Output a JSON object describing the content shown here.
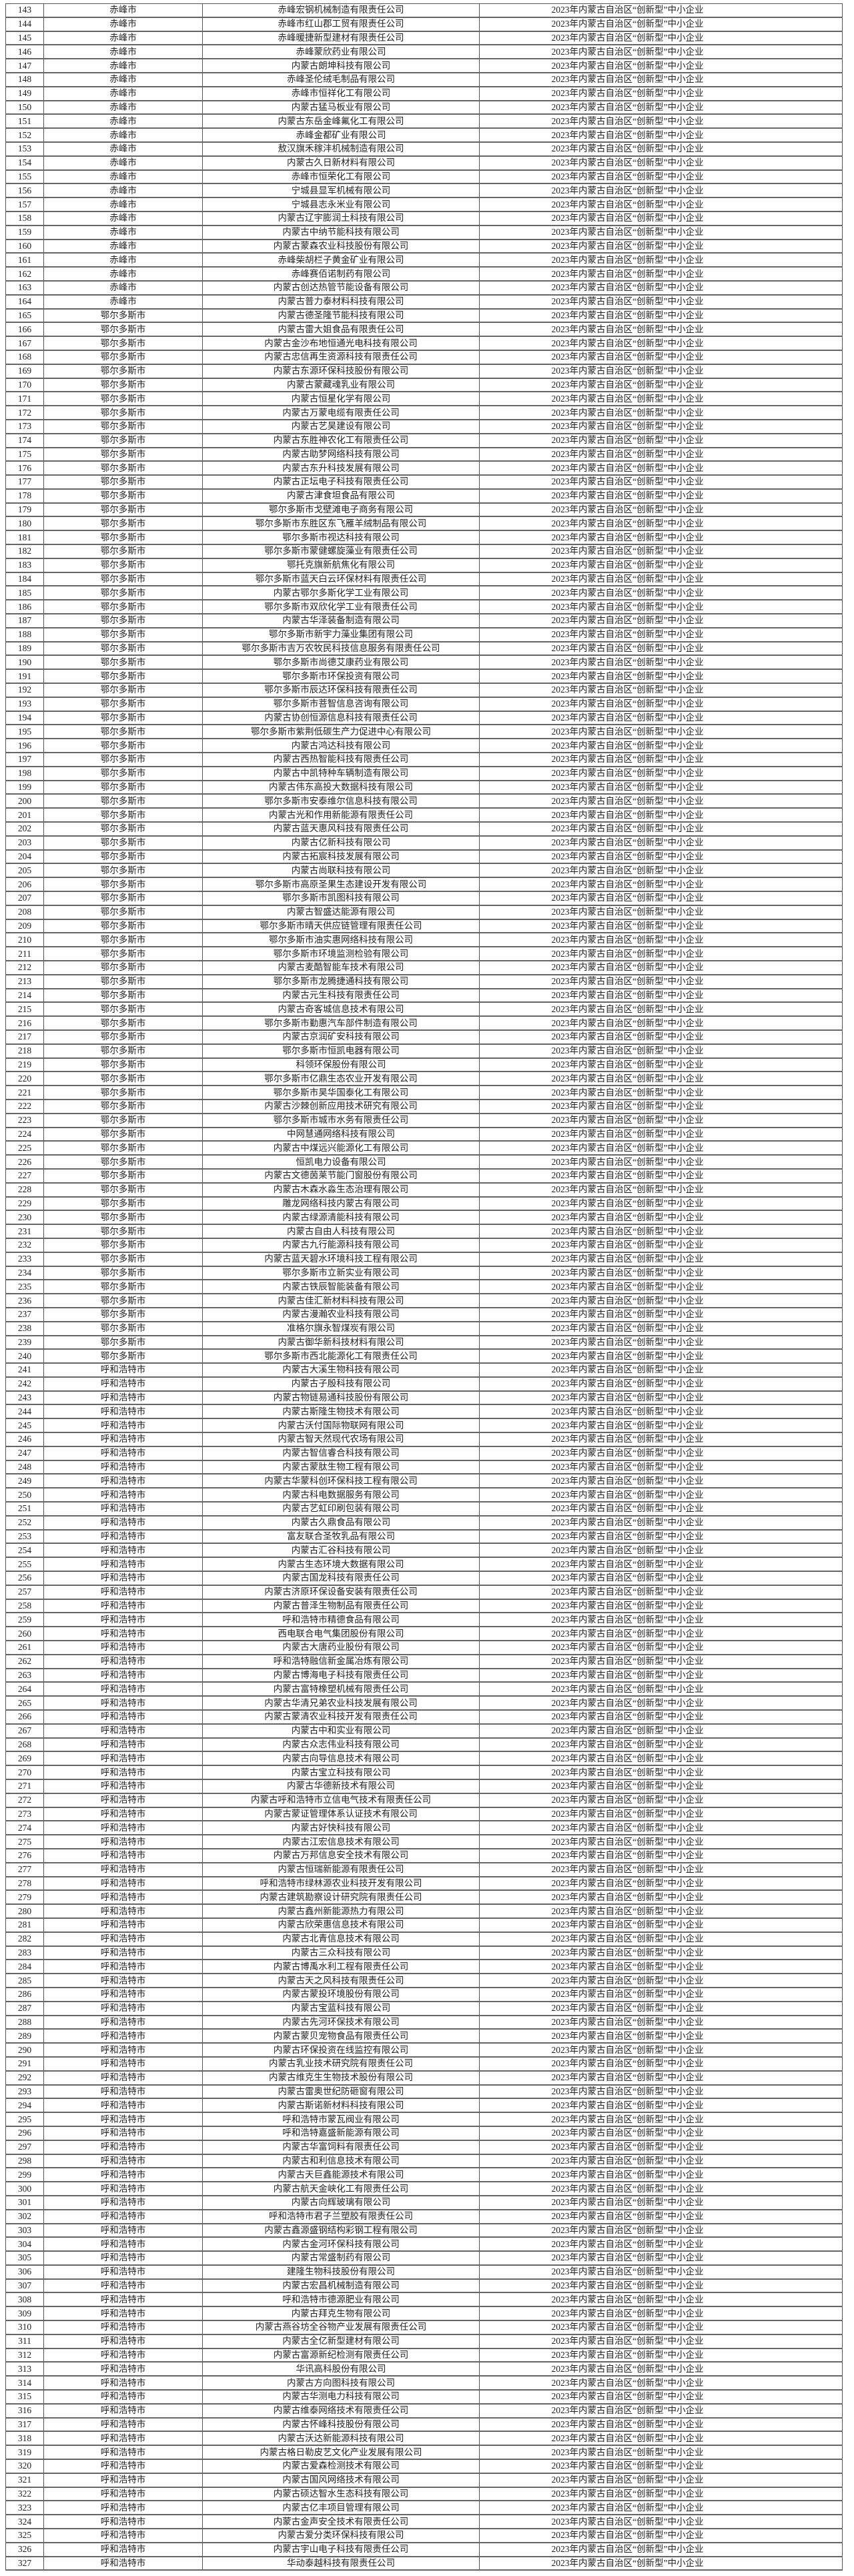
{
  "category": "2023年内蒙古自治区“创新型”中小企业",
  "rows": [
    [
      "143",
      "赤峰市",
      "赤峰宏钢机械制造有限责任公司"
    ],
    [
      "144",
      "赤峰市",
      "赤峰市红山郡工贸有限责任公司"
    ],
    [
      "145",
      "赤峰市",
      "赤峰暖捷新型建材有限责任公司"
    ],
    [
      "146",
      "赤峰市",
      "赤峰蒙欣药业有限公司"
    ],
    [
      "147",
      "赤峰市",
      "内蒙古朗坤科技有限公司"
    ],
    [
      "148",
      "赤峰市",
      "赤峰圣伦绒毛制品有限公司"
    ],
    [
      "149",
      "赤峰市",
      "赤峰市恒祥化工有限公司"
    ],
    [
      "150",
      "赤峰市",
      "内蒙古猛马板业有限公司"
    ],
    [
      "151",
      "赤峰市",
      "内蒙古东岳金峰氟化工有限公司"
    ],
    [
      "152",
      "赤峰市",
      "赤峰金都矿业有限公司"
    ],
    [
      "153",
      "赤峰市",
      "敖汉旗禾稼沣机械制造有限公司"
    ],
    [
      "154",
      "赤峰市",
      "内蒙古久日新材料有限公司"
    ],
    [
      "155",
      "赤峰市",
      "赤峰市恒荣化工有限公司"
    ],
    [
      "156",
      "赤峰市",
      "宁城县显军机械有限公司"
    ],
    [
      "157",
      "赤峰市",
      "宁城县志永米业有限公司"
    ],
    [
      "158",
      "赤峰市",
      "内蒙古辽宇膨润土科技有限公司"
    ],
    [
      "159",
      "赤峰市",
      "内蒙古中纳节能科技有限公司"
    ],
    [
      "160",
      "赤峰市",
      "内蒙古蒙森农业科技股份有限公司"
    ],
    [
      "161",
      "赤峰市",
      "赤峰柴胡栏子黄金矿业有限公司"
    ],
    [
      "162",
      "赤峰市",
      "赤峰赛佰诺制药有限公司"
    ],
    [
      "163",
      "赤峰市",
      "内蒙古创达热管节能设备有限公司"
    ],
    [
      "164",
      "赤峰市",
      "内蒙古普力泰材料科技有限公司"
    ],
    [
      "165",
      "鄂尔多斯市",
      "内蒙古德圣隆节能科技有限公司"
    ],
    [
      "166",
      "鄂尔多斯市",
      "内蒙古雷大姐食品有限责任公司"
    ],
    [
      "167",
      "鄂尔多斯市",
      "内蒙古金沙布地恒通光电科技有限公司"
    ],
    [
      "168",
      "鄂尔多斯市",
      "内蒙古忠信再生资源科技有限责任公司"
    ],
    [
      "169",
      "鄂尔多斯市",
      "内蒙古东源环保科技股份有限公司"
    ],
    [
      "170",
      "鄂尔多斯市",
      "内蒙古蒙藏魂乳业有限公司"
    ],
    [
      "171",
      "鄂尔多斯市",
      "内蒙古恒星化学有限公司"
    ],
    [
      "172",
      "鄂尔多斯市",
      "内蒙古万蒙电缆有限责任公司"
    ],
    [
      "173",
      "鄂尔多斯市",
      "内蒙古艺昊建设有限公司"
    ],
    [
      "174",
      "鄂尔多斯市",
      "内蒙古东胜神农化工有限责任公司"
    ],
    [
      "175",
      "鄂尔多斯市",
      "内蒙古助梦网络科技有限公司"
    ],
    [
      "176",
      "鄂尔多斯市",
      "内蒙古东升科技发展有限公司"
    ],
    [
      "177",
      "鄂尔多斯市",
      "内蒙古正坛电子科技有限责任公司"
    ],
    [
      "178",
      "鄂尔多斯市",
      "内蒙古津食坦食品有限公司"
    ],
    [
      "179",
      "鄂尔多斯市",
      "鄂尔多斯市戈壁滩电子商务有限公司"
    ],
    [
      "180",
      "鄂尔多斯市",
      "鄂尔多斯市东胜区东飞雁羊绒制品有限公司"
    ],
    [
      "181",
      "鄂尔多斯市",
      "鄂尔多斯市视达科技有限公司"
    ],
    [
      "182",
      "鄂尔多斯市",
      "鄂尔多斯市蒙健螺旋藻业有限责任公司"
    ],
    [
      "183",
      "鄂尔多斯市",
      "鄂托克旗新航焦化有限公司"
    ],
    [
      "184",
      "鄂尔多斯市",
      "鄂尔多斯市蓝天白云环保材料有限责任公司"
    ],
    [
      "185",
      "鄂尔多斯市",
      "内蒙古鄂尔多斯化学工业有限公司"
    ],
    [
      "186",
      "鄂尔多斯市",
      "鄂尔多斯市双欣化学工业有限责任公司"
    ],
    [
      "187",
      "鄂尔多斯市",
      "内蒙古华泽装备制造有限公司"
    ],
    [
      "188",
      "鄂尔多斯市",
      "鄂尔多斯市新宇力藻业集团有限公司"
    ],
    [
      "189",
      "鄂尔多斯市",
      "鄂尔多斯市吉万农牧民科技信息服务有限责任公司"
    ],
    [
      "190",
      "鄂尔多斯市",
      "鄂尔多斯市尚德艾康药业有限公司"
    ],
    [
      "191",
      "鄂尔多斯市",
      "鄂尔多斯市环保投资有限公司"
    ],
    [
      "192",
      "鄂尔多斯市",
      "鄂尔多斯市辰达环保科技有限责任公司"
    ],
    [
      "193",
      "鄂尔多斯市",
      "鄂尔多斯市菩智信息咨询有限公司"
    ],
    [
      "194",
      "鄂尔多斯市",
      "内蒙古协创恒源信息科技有限责任公司"
    ],
    [
      "195",
      "鄂尔多斯市",
      "鄂尔多斯市紫荆低碳生产力促进中心有限公司"
    ],
    [
      "196",
      "鄂尔多斯市",
      "内蒙古鸿达科技有限公司"
    ],
    [
      "197",
      "鄂尔多斯市",
      "内蒙古西热智能科技有限责任公司"
    ],
    [
      "198",
      "鄂尔多斯市",
      "内蒙古中凯特种车辆制造有限公司"
    ],
    [
      "199",
      "鄂尔多斯市",
      "内蒙古伟东高投大数据科技有限公司"
    ],
    [
      "200",
      "鄂尔多斯市",
      "鄂尔多斯市安泰维尔信息科技有限公司"
    ],
    [
      "201",
      "鄂尔多斯市",
      "内蒙古光和作用新能源有限责任公司"
    ],
    [
      "202",
      "鄂尔多斯市",
      "内蒙古蓝天惠风科技有限责任公司"
    ],
    [
      "203",
      "鄂尔多斯市",
      "内蒙古亿新科技有限公司"
    ],
    [
      "204",
      "鄂尔多斯市",
      "内蒙古拓宸科技发展有限公司"
    ],
    [
      "205",
      "鄂尔多斯市",
      "内蒙古尚联科技有限公司"
    ],
    [
      "206",
      "鄂尔多斯市",
      "鄂尔多斯市高原圣果生态建设开发有限公司"
    ],
    [
      "207",
      "鄂尔多斯市",
      "鄂尔多斯市凯图科技有限公司"
    ],
    [
      "208",
      "鄂尔多斯市",
      "内蒙古智盛达能源有限公司"
    ],
    [
      "209",
      "鄂尔多斯市",
      "鄂尔多斯市晴天供应链管理有限责任公司"
    ],
    [
      "210",
      "鄂尔多斯市",
      "鄂尔多斯市油实惠网络科技有限公司"
    ],
    [
      "211",
      "鄂尔多斯市",
      "鄂尔多斯市环境监测检验有限公司"
    ],
    [
      "212",
      "鄂尔多斯市",
      "内蒙古麦酷智能车技术有限公司"
    ],
    [
      "213",
      "鄂尔多斯市",
      "鄂尔多斯市龙腾捷通科技有限公司"
    ],
    [
      "214",
      "鄂尔多斯市",
      "内蒙古元生科技有限责任公司"
    ],
    [
      "215",
      "鄂尔多斯市",
      "内蒙古奇客城信息技术有限公司"
    ],
    [
      "216",
      "鄂尔多斯市",
      "鄂尔多斯市勤惠汽车部件制造有限公司"
    ],
    [
      "217",
      "鄂尔多斯市",
      "内蒙古京润矿安科技有限公司"
    ],
    [
      "218",
      "鄂尔多斯市",
      "鄂尔多斯市恒凯电器有限公司"
    ],
    [
      "219",
      "鄂尔多斯市",
      "科领环保股份有限公司"
    ],
    [
      "220",
      "鄂尔多斯市",
      "鄂尔多斯市亿鼎生态农业开发有限公司"
    ],
    [
      "221",
      "鄂尔多斯市",
      "鄂尔多斯市昊华国泰化工有限公司"
    ],
    [
      "222",
      "鄂尔多斯市",
      "内蒙古沙棘创新应用技术研究有限公司"
    ],
    [
      "223",
      "鄂尔多斯市",
      "鄂尔多斯市城市水务有限责任公司"
    ],
    [
      "224",
      "鄂尔多斯市",
      "中网慧通网络科技有限公司"
    ],
    [
      "225",
      "鄂尔多斯市",
      "内蒙古中煤远兴能源化工有限公司"
    ],
    [
      "226",
      "鄂尔多斯市",
      "恒凯电力设备有限公司"
    ],
    [
      "227",
      "鄂尔多斯市",
      "内蒙古文德茵莱节能门窗股份有限公司"
    ],
    [
      "228",
      "鄂尔多斯市",
      "内蒙古木森水淼生态治理有限公司"
    ],
    [
      "229",
      "鄂尔多斯市",
      "雕龙网络科技内蒙古有限公司"
    ],
    [
      "230",
      "鄂尔多斯市",
      "内蒙古绿源清能科技有限公司"
    ],
    [
      "231",
      "鄂尔多斯市",
      "内蒙古自由人科技有限公司"
    ],
    [
      "232",
      "鄂尔多斯市",
      "内蒙古九行能源科技有限公司"
    ],
    [
      "233",
      "鄂尔多斯市",
      "内蒙古蓝天碧水环境科技工程有限公司"
    ],
    [
      "234",
      "鄂尔多斯市",
      "鄂尔多斯市立新实业有限公司"
    ],
    [
      "235",
      "鄂尔多斯市",
      "内蒙古铁辰智能装备有限公司"
    ],
    [
      "236",
      "鄂尔多斯市",
      "内蒙古佳汇新材料科技有限公司"
    ],
    [
      "237",
      "鄂尔多斯市",
      "内蒙古漫瀚农业科技有限公司"
    ],
    [
      "238",
      "鄂尔多斯市",
      "准格尔旗永智煤炭有限公司"
    ],
    [
      "239",
      "鄂尔多斯市",
      "内蒙古御华新科技材料有限公司"
    ],
    [
      "240",
      "鄂尔多斯市",
      "鄂尔多斯市西北能源化工有限责任公司"
    ],
    [
      "241",
      "呼和浩特市",
      "内蒙古大溪生物科技有限公司"
    ],
    [
      "242",
      "呼和浩特市",
      "内蒙古子殷科技有限公司"
    ],
    [
      "243",
      "呼和浩特市",
      "内蒙古物链易通科技股份有限公司"
    ],
    [
      "244",
      "呼和浩特市",
      "内蒙古斯隆生物技术有限公司"
    ],
    [
      "245",
      "呼和浩特市",
      "内蒙古沃付国际物联网有限公司"
    ],
    [
      "246",
      "呼和浩特市",
      "内蒙古智天然现代农场有限公司"
    ],
    [
      "247",
      "呼和浩特市",
      "内蒙古智信睿合科技有限公司"
    ],
    [
      "248",
      "呼和浩特市",
      "内蒙古蒙肽生物工程有限公司"
    ],
    [
      "249",
      "呼和浩特市",
      "内蒙古华蒙科创环保科技工程有限公司"
    ],
    [
      "250",
      "呼和浩特市",
      "内蒙古科电数据服务有限公司"
    ],
    [
      "251",
      "呼和浩特市",
      "内蒙古艺虹印刷包装有限公司"
    ],
    [
      "252",
      "呼和浩特市",
      "内蒙古久鼎食品有限公司"
    ],
    [
      "253",
      "呼和浩特市",
      "富友联合圣牧乳品有限公司"
    ],
    [
      "254",
      "呼和浩特市",
      "内蒙古汇谷科技有限公司"
    ],
    [
      "255",
      "呼和浩特市",
      "内蒙古生态环境大数据有限公司"
    ],
    [
      "256",
      "呼和浩特市",
      "内蒙古国龙科技有限责任公司"
    ],
    [
      "257",
      "呼和浩特市",
      "内蒙古济原环保设备安装有限责任公司"
    ],
    [
      "258",
      "呼和浩特市",
      "内蒙古普泽生物制品有限责任公司"
    ],
    [
      "259",
      "呼和浩特市",
      "呼和浩特市精德食品有限公司"
    ],
    [
      "260",
      "呼和浩特市",
      "西电联合电气集团股份有限公司"
    ],
    [
      "261",
      "呼和浩特市",
      "内蒙古大唐药业股份有限公司"
    ],
    [
      "262",
      "呼和浩特市",
      "呼和浩特融信新金属冶炼有限公司"
    ],
    [
      "263",
      "呼和浩特市",
      "内蒙古博海电子科技有限责任公司"
    ],
    [
      "264",
      "呼和浩特市",
      "内蒙古富特橡塑机械有限责任公司"
    ],
    [
      "265",
      "呼和浩特市",
      "内蒙古华清兄弟农业科技发展有限公司"
    ],
    [
      "266",
      "呼和浩特市",
      "内蒙古蒙清农业科技开发有限责任公司"
    ],
    [
      "267",
      "呼和浩特市",
      "内蒙古中和实业有限公司"
    ],
    [
      "268",
      "呼和浩特市",
      "内蒙古众志伟业科技有限公司"
    ],
    [
      "269",
      "呼和浩特市",
      "内蒙古向导信息技术有限公司"
    ],
    [
      "270",
      "呼和浩特市",
      "内蒙古宝立科技有限公司"
    ],
    [
      "271",
      "呼和浩特市",
      "内蒙古华德新技术有限公司"
    ],
    [
      "272",
      "呼和浩特市",
      "内蒙古呼和浩特市立信电气技术有限责任公司"
    ],
    [
      "273",
      "呼和浩特市",
      "内蒙古蒙证管理体系认证技术有限公司"
    ],
    [
      "274",
      "呼和浩特市",
      "内蒙古好快科技有限公司"
    ],
    [
      "275",
      "呼和浩特市",
      "内蒙古江宏信息技术有限公司"
    ],
    [
      "276",
      "呼和浩特市",
      "内蒙古万邦信息安全技术有限公司"
    ],
    [
      "277",
      "呼和浩特市",
      "内蒙古恒瑞新能源有限责任公司"
    ],
    [
      "278",
      "呼和浩特市",
      "呼和浩特市绿林源农业科技开发有限公司"
    ],
    [
      "279",
      "呼和浩特市",
      "内蒙古建筑勘察设计研究院有限责任公司"
    ],
    [
      "280",
      "呼和浩特市",
      "内蒙古鑫州新能源热力有限公司"
    ],
    [
      "281",
      "呼和浩特市",
      "内蒙古欣荣惠信息技术有限公司"
    ],
    [
      "282",
      "呼和浩特市",
      "内蒙古北青信息技术有限公司"
    ],
    [
      "283",
      "呼和浩特市",
      "内蒙古三众科技有限公司"
    ],
    [
      "284",
      "呼和浩特市",
      "内蒙古博禹水利工程有限责任公司"
    ],
    [
      "285",
      "呼和浩特市",
      "内蒙古天之风科技有限责任公司"
    ],
    [
      "286",
      "呼和浩特市",
      "内蒙古蒙投环境股份有限公司"
    ],
    [
      "287",
      "呼和浩特市",
      "内蒙古宝蓝科技有限公司"
    ],
    [
      "288",
      "呼和浩特市",
      "内蒙古先河环保技术有限公司"
    ],
    [
      "289",
      "呼和浩特市",
      "内蒙古蒙贝宠物食品有限责任公司"
    ],
    [
      "290",
      "呼和浩特市",
      "内蒙古环保投资在线监控有限公司"
    ],
    [
      "291",
      "呼和浩特市",
      "内蒙古乳业技术研究院有限责任公司"
    ],
    [
      "292",
      "呼和浩特市",
      "内蒙古维克生生物技术股份有限公司"
    ],
    [
      "293",
      "呼和浩特市",
      "内蒙古雷奥世纪防砸窗有限公司"
    ],
    [
      "294",
      "呼和浩特市",
      "内蒙古斯诺新材料科技有限公司"
    ],
    [
      "295",
      "呼和浩特市",
      "呼和浩特市蒙瓦阀业有限公司"
    ],
    [
      "296",
      "呼和浩特市",
      "呼和浩特嘉盛新能源有限公司"
    ],
    [
      "297",
      "呼和浩特市",
      "内蒙古华富饲料有限责任公司"
    ],
    [
      "298",
      "呼和浩特市",
      "内蒙古和利信息技术有限公司"
    ],
    [
      "299",
      "呼和浩特市",
      "内蒙古天巨鑫能源技术有限公司"
    ],
    [
      "300",
      "呼和浩特市",
      "内蒙古航天金峡化工有限责任公司"
    ],
    [
      "301",
      "呼和浩特市",
      "内蒙古向辉玻璃有限公司"
    ],
    [
      "302",
      "呼和浩特市",
      "呼和浩特市君子兰塑胶有限责任公司"
    ],
    [
      "303",
      "呼和浩特市",
      "内蒙古鑫源盛钢结构彩钢工程有限公司"
    ],
    [
      "304",
      "呼和浩特市",
      "内蒙古金河环保科技有限公司"
    ],
    [
      "305",
      "呼和浩特市",
      "内蒙古常盛制药有限公司"
    ],
    [
      "306",
      "呼和浩特市",
      "建隆生物科技股份有限公司"
    ],
    [
      "307",
      "呼和浩特市",
      "内蒙古宏昌机械制造有限公司"
    ],
    [
      "308",
      "呼和浩特市",
      "呼和浩特市德源肥业有限公司"
    ],
    [
      "309",
      "呼和浩特市",
      "内蒙古拜克生物有限公司"
    ],
    [
      "310",
      "呼和浩特市",
      "内蒙古燕谷坊全谷物产业发展有限责任公司"
    ],
    [
      "311",
      "呼和浩特市",
      "内蒙古全亿新型建材有限公司"
    ],
    [
      "312",
      "呼和浩特市",
      "内蒙古富源新纪检测有限责任公司"
    ],
    [
      "313",
      "呼和浩特市",
      "华讯高科股份有限公司"
    ],
    [
      "314",
      "呼和浩特市",
      "内蒙古方向图科技有限公司"
    ],
    [
      "315",
      "呼和浩特市",
      "内蒙古华测电力科技有限公司"
    ],
    [
      "316",
      "呼和浩特市",
      "内蒙古维泰网络技术有限责任公司"
    ],
    [
      "317",
      "呼和浩特市",
      "内蒙古怀峰科技股份有限公司"
    ],
    [
      "318",
      "呼和浩特市",
      "内蒙古沃达新能源科技有限公司"
    ],
    [
      "319",
      "呼和浩特市",
      "内蒙古格日勒皮艺文化产业发展有限公司"
    ],
    [
      "320",
      "呼和浩特市",
      "内蒙古爱森检测技术有限公司"
    ],
    [
      "321",
      "呼和浩特市",
      "内蒙古国风网络技术有限公司"
    ],
    [
      "322",
      "呼和浩特市",
      "内蒙古硕达智水生态科技有限公司"
    ],
    [
      "323",
      "呼和浩特市",
      "内蒙古亿丰项目管理有限公司"
    ],
    [
      "324",
      "呼和浩特市",
      "内蒙古金声安全技术有限责任公司"
    ],
    [
      "325",
      "呼和浩特市",
      "内蒙古爱分类环保科技有限公司"
    ],
    [
      "326",
      "呼和浩特市",
      "内蒙古宇山电子科技有限责任公司"
    ],
    [
      "327",
      "呼和浩特市",
      "华动泰越科技有限责任公司"
    ]
  ]
}
